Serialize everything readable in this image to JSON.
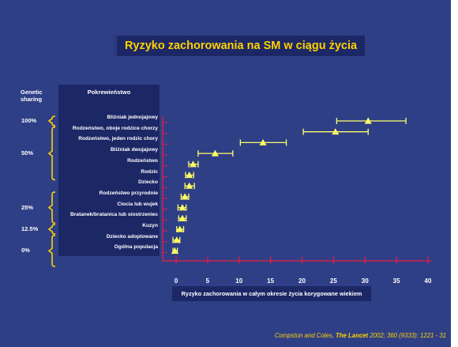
{
  "title": "Ryzyko zachorowania na SM w ciągu życia",
  "source": {
    "authors": "Compston and Coles,",
    "journal": "The Lancet",
    "citation": "2002; 360 (9333): 1221 - 31"
  },
  "colors": {
    "background": "#2f3f86",
    "panel": "#1c2766",
    "accent": "#ffd200",
    "marker": "#ffff66",
    "axis": "#d4204a"
  },
  "genetic_sharing": {
    "header_line1": "Genetic",
    "header_line2": "sharing",
    "levels": [
      {
        "label": "100%",
        "rows": [
          0,
          0
        ]
      },
      {
        "label": "50%",
        "rows": [
          1,
          5
        ]
      },
      {
        "label": "25%",
        "rows": [
          7,
          9
        ]
      },
      {
        "label": "12.5%",
        "rows": [
          10,
          10
        ]
      },
      {
        "label": "0%",
        "rows": [
          11,
          13
        ]
      }
    ]
  },
  "chart_data": {
    "type": "scatter",
    "title": "Ryzyko zachorowania na SM w ciągu życia",
    "category_header": "Pokrewieństwo",
    "xlabel": "Ryzyko zachorowania w całym okresie życia korygowane wiekiem",
    "ylabel": "",
    "xlim": [
      0,
      40
    ],
    "xticks": [
      0,
      5,
      10,
      15,
      20,
      25,
      30,
      35,
      40
    ],
    "grid": false,
    "error_bars": true,
    "categories": [
      "Bliźniak jednojajowy",
      "Rodzeństwo, oboje rodzice chorzy",
      "Rodzeństwo, jeden rodzic chory",
      "Bliźniak dwujajowy",
      "Rodzeństwo",
      "Rodzic",
      "Dziecko",
      "Rodzeństwo przyrodnie",
      "Ciocia lub wujek",
      "Bratanek/bratanica lub siostrzeniec",
      "Kuzyn",
      "Dziecko adoptowane",
      "Ogólna populacja"
    ],
    "points": [
      {
        "category": "Bliźniak jednojajowy",
        "values": [
          {
            "x": 30.5,
            "low": 25.5,
            "high": 36.5
          }
        ]
      },
      {
        "category": "Rodzeństwo, oboje rodzice chorzy",
        "values": [
          {
            "x": 25.3,
            "low": 20.2,
            "high": 30.5
          }
        ]
      },
      {
        "category": "Rodzeństwo, jeden rodzic chory",
        "values": [
          {
            "x": 13.8,
            "low": 10.2,
            "high": 17.5
          }
        ]
      },
      {
        "category": "Bliźniak dwujajowy",
        "values": [
          {
            "x": 6.2,
            "low": 3.5,
            "high": 9.0
          }
        ]
      },
      {
        "category": "Rodzeństwo",
        "values": [
          {
            "x": 2.7,
            "low": 2.0,
            "high": 3.5
          }
        ]
      },
      {
        "category": "Rodzic",
        "values": [
          {
            "x": 2.1,
            "low": 1.5,
            "high": 2.8
          }
        ]
      },
      {
        "category": "Dziecko",
        "values": [
          {
            "x": 2.1,
            "low": 1.4,
            "high": 2.9
          }
        ]
      },
      {
        "category": "Rodzeństwo przyrodnie",
        "values": [
          {
            "x": 1.4,
            "low": 0.8,
            "high": 2.0
          }
        ]
      },
      {
        "category": "Ciocia lub wujek",
        "values": [
          {
            "x": 1.0,
            "low": 0.3,
            "high": 1.6
          }
        ]
      },
      {
        "category": "Bratanek/bratanica lub siostrzeniec",
        "values": [
          {
            "x": 1.0,
            "low": 0.4,
            "high": 1.6
          }
        ]
      },
      {
        "category": "Kuzyn",
        "values": [
          {
            "x": 0.6,
            "low": 0.1,
            "high": 1.2
          }
        ]
      },
      {
        "category": "Dziecko adoptowane",
        "values": [
          {
            "x": 0.1,
            "low": -0.5,
            "high": 0.6
          }
        ]
      },
      {
        "category": "Ogólna populacja",
        "values": [
          {
            "x": -0.2,
            "low": -0.5,
            "high": 0.2
          }
        ]
      }
    ]
  }
}
